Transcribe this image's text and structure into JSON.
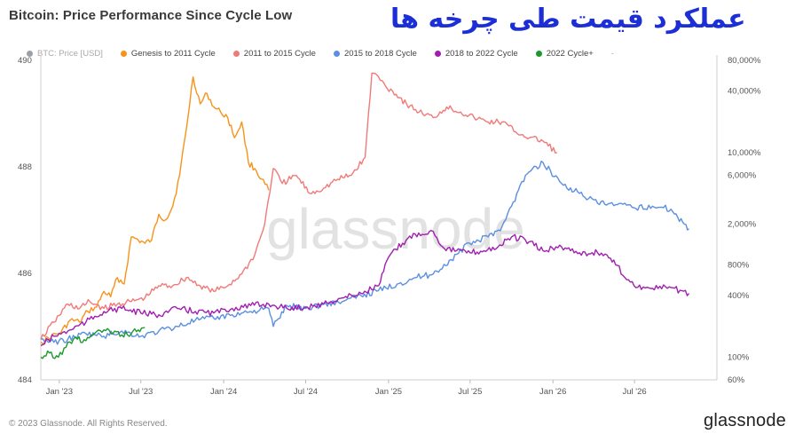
{
  "header": {
    "title": "Bitcoin: Price Performance Since Cycle Low",
    "overlay_text": "عملکرد قیمت طی چرخه ها"
  },
  "legend": [
    {
      "label": "BTC: Price [USD]",
      "color": "#9aa0a6",
      "enabled": false
    },
    {
      "label": "Genesis to 2011 Cycle",
      "color": "#f7931a",
      "enabled": true
    },
    {
      "label": "2011 to 2015 Cycle",
      "color": "#f07a78",
      "enabled": true
    },
    {
      "label": "2015 to 2018 Cycle",
      "color": "#5b8fe0",
      "enabled": true
    },
    {
      "label": "2018 to 2022 Cycle",
      "color": "#a11fb0",
      "enabled": true
    },
    {
      "label": "2022 Cycle+",
      "color": "#1a9a2c",
      "enabled": true
    },
    {
      "label": "-",
      "color": "",
      "enabled": false
    }
  ],
  "footer": {
    "copyright": "© 2023 Glassnode. All Rights Reserved.",
    "brand": "glassnode"
  },
  "watermark": "glassnode",
  "chart_data": {
    "type": "line",
    "left_axis": {
      "ticks": [
        "490",
        "488",
        "486",
        "484"
      ],
      "values": [
        490,
        488,
        486,
        484
      ],
      "range": [
        484,
        490
      ]
    },
    "right_axis": {
      "scale": "log",
      "ticks": [
        "80,000%",
        "40,000%",
        "10,000%",
        "6,000%",
        "2,000%",
        "800%",
        "400%",
        "100%",
        "60%"
      ],
      "values": [
        80000,
        40000,
        10000,
        6000,
        2000,
        800,
        400,
        100,
        60
      ],
      "range": [
        60,
        80000
      ]
    },
    "x_axis": {
      "ticks": [
        "Jan '23",
        "Jul '23",
        "Jan '24",
        "Jul '24",
        "Jan '25",
        "Jul '25",
        "Jan '26",
        "Jul '26"
      ],
      "range": [
        "2022-11-21",
        "2026-12-31"
      ]
    },
    "series": [
      {
        "name": "Genesis to 2011 Cycle",
        "color": "#f7931a",
        "x": [
          "2022-11-21",
          "2022-12-15",
          "2023-01-05",
          "2023-01-25",
          "2023-02-15",
          "2023-03-05",
          "2023-03-25",
          "2023-04-10",
          "2023-04-25",
          "2023-05-10",
          "2023-05-25",
          "2023-06-10",
          "2023-06-25",
          "2023-07-10",
          "2023-07-25",
          "2023-08-10",
          "2023-08-25",
          "2023-09-10",
          "2023-09-25",
          "2023-10-10",
          "2023-10-25",
          "2023-11-10",
          "2023-11-25",
          "2023-12-10",
          "2023-12-25",
          "2024-01-10",
          "2024-01-25",
          "2024-02-10",
          "2024-02-25",
          "2024-03-10",
          "2024-03-25",
          "2024-04-10"
        ],
        "y": [
          140,
          160,
          175,
          230,
          220,
          280,
          310,
          440,
          390,
          600,
          520,
          1500,
          1400,
          1300,
          1400,
          2500,
          2200,
          3000,
          6000,
          17000,
          55000,
          30000,
          38000,
          28000,
          25000,
          22000,
          14000,
          20000,
          8000,
          7000,
          5500,
          4300
        ]
      },
      {
        "name": "2011 to 2015 Cycle",
        "color": "#f07a78",
        "x": [
          "2022-11-21",
          "2022-12-20",
          "2023-01-20",
          "2023-02-15",
          "2023-03-10",
          "2023-04-10",
          "2023-05-10",
          "2023-06-10",
          "2023-07-10",
          "2023-08-10",
          "2023-09-10",
          "2023-10-10",
          "2023-11-10",
          "2023-12-10",
          "2024-01-10",
          "2024-02-10",
          "2024-03-10",
          "2024-04-01",
          "2024-04-20",
          "2024-05-10",
          "2024-06-10",
          "2024-07-10",
          "2024-08-10",
          "2024-09-10",
          "2024-10-10",
          "2024-11-10",
          "2024-11-25",
          "2024-12-10",
          "2024-12-25",
          "2025-01-10",
          "2025-02-10",
          "2025-03-10",
          "2025-04-10",
          "2025-05-10",
          "2025-06-10",
          "2025-07-10",
          "2025-08-10",
          "2025-09-10",
          "2025-10-10",
          "2025-11-10",
          "2025-12-10",
          "2026-01-10"
        ],
        "y": [
          150,
          220,
          330,
          300,
          350,
          300,
          330,
          350,
          380,
          500,
          500,
          600,
          500,
          440,
          500,
          650,
          1000,
          2000,
          7000,
          5000,
          6000,
          4000,
          4500,
          5500,
          6000,
          9000,
          60000,
          55000,
          45000,
          40000,
          30000,
          25000,
          22000,
          28000,
          25000,
          22000,
          20000,
          20000,
          16000,
          14000,
          13000,
          10000
        ]
      },
      {
        "name": "2015 to 2018 Cycle",
        "color": "#5b8fe0",
        "x": [
          "2022-11-21",
          "2022-12-20",
          "2023-01-20",
          "2023-03-01",
          "2023-04-10",
          "2023-05-20",
          "2023-07-01",
          "2023-08-10",
          "2023-09-20",
          "2023-10-30",
          "2023-12-10",
          "2024-01-20",
          "2024-03-01",
          "2024-04-10",
          "2024-04-20",
          "2024-05-20",
          "2024-07-01",
          "2024-08-10",
          "2024-09-20",
          "2024-11-01",
          "2024-12-10",
          "2025-01-20",
          "2025-03-01",
          "2025-04-10",
          "2025-05-20",
          "2025-06-30",
          "2025-08-10",
          "2025-09-10",
          "2025-10-01",
          "2025-11-01",
          "2025-12-10",
          "2026-01-20",
          "2026-03-01",
          "2026-04-10",
          "2026-05-20",
          "2026-06-30",
          "2026-08-10",
          "2026-09-20",
          "2026-10-20",
          "2026-10-30"
        ],
        "y": [
          150,
          140,
          150,
          170,
          160,
          180,
          160,
          180,
          200,
          230,
          240,
          260,
          280,
          300,
          200,
          320,
          300,
          330,
          350,
          400,
          450,
          520,
          600,
          650,
          900,
          1300,
          1500,
          1900,
          3000,
          6000,
          8000,
          5000,
          4000,
          3200,
          3100,
          2900,
          3000,
          2800,
          2000,
          1800
        ]
      },
      {
        "name": "2018 to 2022 Cycle",
        "color": "#a11fb0",
        "x": [
          "2022-11-21",
          "2022-12-20",
          "2023-01-20",
          "2023-03-01",
          "2023-04-10",
          "2023-05-20",
          "2023-07-01",
          "2023-08-10",
          "2023-09-20",
          "2023-10-30",
          "2023-12-10",
          "2024-01-20",
          "2024-03-01",
          "2024-04-10",
          "2024-05-20",
          "2024-07-01",
          "2024-08-10",
          "2024-09-20",
          "2024-11-01",
          "2024-12-10",
          "2025-01-01",
          "2025-02-01",
          "2025-03-01",
          "2025-04-10",
          "2025-05-01",
          "2025-06-01",
          "2025-07-01",
          "2025-08-01",
          "2025-09-01",
          "2025-10-01",
          "2025-11-01",
          "2025-12-10",
          "2026-01-20",
          "2026-03-01",
          "2026-04-10",
          "2026-05-01",
          "2026-05-20",
          "2026-06-30",
          "2026-08-10",
          "2026-09-20",
          "2026-10-30"
        ],
        "y": [
          130,
          160,
          180,
          220,
          280,
          300,
          270,
          260,
          300,
          280,
          270,
          300,
          320,
          330,
          300,
          310,
          330,
          380,
          420,
          500,
          950,
          1300,
          1600,
          1700,
          1200,
          1100,
          1050,
          1100,
          1200,
          1500,
          1400,
          1100,
          1200,
          1050,
          1050,
          1000,
          800,
          500,
          470,
          480,
          420
        ]
      },
      {
        "name": "2022 Cycle+",
        "color": "#1a9a2c",
        "x": [
          "2022-11-21",
          "2022-12-10",
          "2022-12-30",
          "2023-01-20",
          "2023-02-10",
          "2023-03-01",
          "2023-03-20",
          "2023-04-10",
          "2023-04-30",
          "2023-05-20",
          "2023-06-10",
          "2023-06-25",
          "2023-07-10"
        ],
        "y": [
          100,
          110,
          100,
          140,
          150,
          145,
          170,
          185,
          170,
          165,
          170,
          185,
          195
        ]
      }
    ]
  }
}
